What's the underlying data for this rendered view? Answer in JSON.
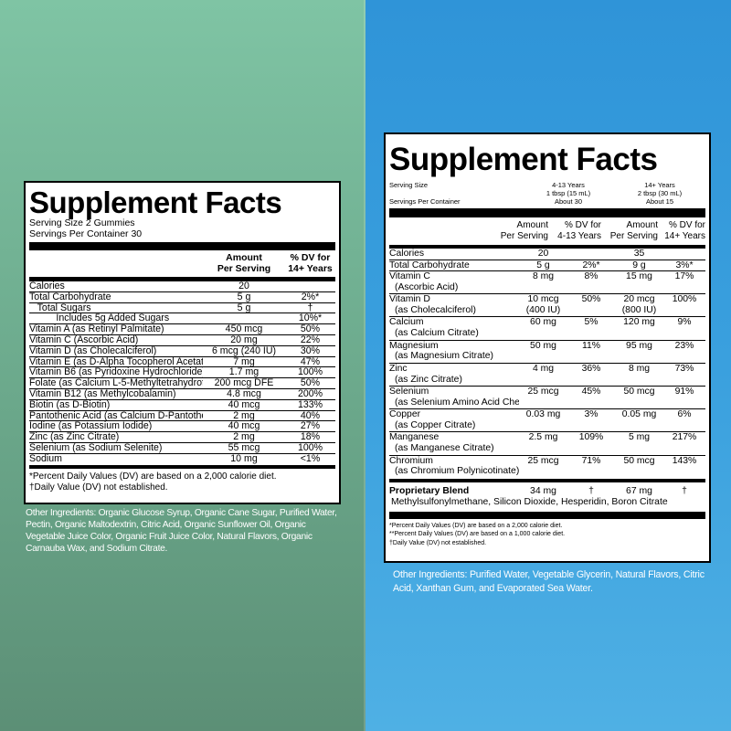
{
  "left": {
    "title": "Supplement Facts",
    "serving_size": "Serving Size 2 Gummies",
    "servings_per_container": "Servings Per Container 30",
    "col_amount_1": "Amount",
    "col_amount_2": "Per Serving",
    "col_dv_1": "% DV for",
    "col_dv_2": "14+ Years",
    "rows": [
      {
        "name": "Calories",
        "amount": "20",
        "dv": ""
      },
      {
        "name": "Total Carbohydrate",
        "amount": "5 g",
        "dv": "2%*"
      },
      {
        "name": "   Total Sugars",
        "amount": "5 g",
        "dv": "†"
      },
      {
        "name": "          Includes 5g Added Sugars",
        "amount": "",
        "dv": "10%*"
      },
      {
        "name": "Vitamin A (as Retinyl Palmitate)",
        "amount": "450 mcg",
        "dv": "50%"
      },
      {
        "name": "Vitamin C (Ascorbic Acid)",
        "amount": "20 mg",
        "dv": "22%"
      },
      {
        "name": "Vitamin D (as Cholecalciferol)",
        "amount": "6 mcg (240 IU)",
        "dv": "30%"
      },
      {
        "name": "Vitamin E (as D-Alpha Tocopherol Acetate)",
        "amount": "7 mg",
        "dv": "47%"
      },
      {
        "name": "Vitamin B6 (as Pyridoxine Hydrochloride)",
        "amount": "1.7 mg",
        "dv": "100%"
      },
      {
        "name": "Folate (as Calcium L-5-Methyltetrahydrofolate)",
        "amount": "200 mcg DFE",
        "dv": "50%"
      },
      {
        "name": "Vitamin B12 (as Methylcobalamin)",
        "amount": "4.8 mcg",
        "dv": "200%"
      },
      {
        "name": "Biotin (as D-Biotin)",
        "amount": "40 mcg",
        "dv": "133%"
      },
      {
        "name": "Pantothenic Acid (as Calcium D-Pantothenate)",
        "amount": "2 mg",
        "dv": "40%"
      },
      {
        "name": "Iodine (as Potassium Iodide)",
        "amount": "40 mcg",
        "dv": "27%"
      },
      {
        "name": "Zinc (as Zinc Citrate)",
        "amount": "2 mg",
        "dv": "18%"
      },
      {
        "name": "Selenium (as Sodium Selenite)",
        "amount": "55 mcg",
        "dv": "100%"
      },
      {
        "name": "Sodium",
        "amount": "10 mg",
        "dv": "<1%"
      }
    ],
    "footnote_1": "*Percent Daily Values (DV) are based on a 2,000 calorie diet.",
    "footnote_2": "†Daily Value (DV) not established.",
    "other_ingredients": "Other Ingredients: Organic Glucose Syrup, Organic Cane Sugar, Purified Water, Pectin, Organic Maltodextrin, Citric Acid, Organic Sunflower Oil, Organic Vegetable Juice Color, Organic Fruit Juice Color, Natural Flavors, Organic Carnauba Wax, and Sodium Citrate."
  },
  "right": {
    "title": "Supplement Facts",
    "serving_size_label": "Serving Size",
    "servings_per_container_label": "Servings Per Container",
    "group1_label": "4-13 Years",
    "group1_size": "1 tbsp (15 mL)",
    "group1_servings": "About 30",
    "group2_label": "14+ Years",
    "group2_size": "2 tbsp (30 mL)",
    "group2_servings": "About 15",
    "hdr_amount_1": "Amount",
    "hdr_amount_2": "Per Serving",
    "hdr_dv1_1": "% DV for",
    "hdr_dv1_2": "4-13 Years",
    "hdr_dv2_1": "% DV for",
    "hdr_dv2_2": "14+ Years",
    "rows": [
      {
        "name": "Calories",
        "sub": "",
        "a1": "20",
        "a1b": "",
        "dv1": "",
        "a2": "35",
        "a2b": "",
        "dv2": ""
      },
      {
        "name": "Total Carbohydrate",
        "sub": "",
        "a1": "5 g",
        "a1b": "",
        "dv1": "2%*",
        "a2": "9 g",
        "a2b": "",
        "dv2": "3%*"
      },
      {
        "name": "Vitamin C",
        "sub": "(Ascorbic Acid)",
        "a1": "8 mg",
        "a1b": "",
        "dv1": "8%",
        "a2": "15 mg",
        "a2b": "",
        "dv2": "17%"
      },
      {
        "name": "Vitamin D",
        "sub": "(as Cholecalciferol)",
        "a1": "10 mcg",
        "a1b": "(400 IU)",
        "dv1": "50%",
        "a2": "20 mcg",
        "a2b": "(800 IU)",
        "dv2": "100%"
      },
      {
        "name": "Calcium",
        "sub": "(as Calcium Citrate)",
        "a1": "60 mg",
        "a1b": "",
        "dv1": "5%",
        "a2": "120 mg",
        "a2b": "",
        "dv2": "9%"
      },
      {
        "name": "Magnesium",
        "sub": "(as Magnesium Citrate)",
        "a1": "50 mg",
        "a1b": "",
        "dv1": "11%",
        "a2": "95 mg",
        "a2b": "",
        "dv2": "23%"
      },
      {
        "name": "Zinc",
        "sub": "(as Zinc Citrate)",
        "a1": "4 mg",
        "a1b": "",
        "dv1": "36%",
        "a2": "8 mg",
        "a2b": "",
        "dv2": "73%"
      },
      {
        "name": "Selenium",
        "sub": "(as Selenium Amino Acid Chelate)",
        "a1": "25 mcg",
        "a1b": "",
        "dv1": "45%",
        "a2": "50 mcg",
        "a2b": "",
        "dv2": "91%"
      },
      {
        "name": "Copper",
        "sub": "(as Copper Citrate)",
        "a1": "0.03 mg",
        "a1b": "",
        "dv1": "3%",
        "a2": "0.05 mg",
        "a2b": "",
        "dv2": "6%"
      },
      {
        "name": "Manganese",
        "sub": "(as Manganese Citrate)",
        "a1": "2.5 mg",
        "a1b": "",
        "dv1": "109%",
        "a2": "5 mg",
        "a2b": "",
        "dv2": "217%"
      },
      {
        "name": "Chromium",
        "sub": "(as Chromium Polynicotinate)",
        "a1": "25 mcg",
        "a1b": "",
        "dv1": "71%",
        "a2": "50 mcg",
        "a2b": "",
        "dv2": "143%"
      }
    ],
    "blend_name": "Proprietary Blend",
    "blend_a1": "34 mg",
    "blend_dv1": "†",
    "blend_a2": "67 mg",
    "blend_dv2": "†",
    "blend_contents": "Methylsulfonylmethane, Silicon Dioxide, Hesperidin, Boron Citrate",
    "footnote_1": "*Percent Daily Values (DV) are based on a 2,000 calorie diet.",
    "footnote_2": "**Percent Daily Values (DV) are based on a 1,000 calorie diet.",
    "footnote_3": "†Daily Value (DV) not established.",
    "other_ingredients": "Other Ingredients: Purified Water, Vegetable Glycerin, Natural Flavors, Citric Acid, Xanthan Gum, and Evaporated Sea Water."
  }
}
